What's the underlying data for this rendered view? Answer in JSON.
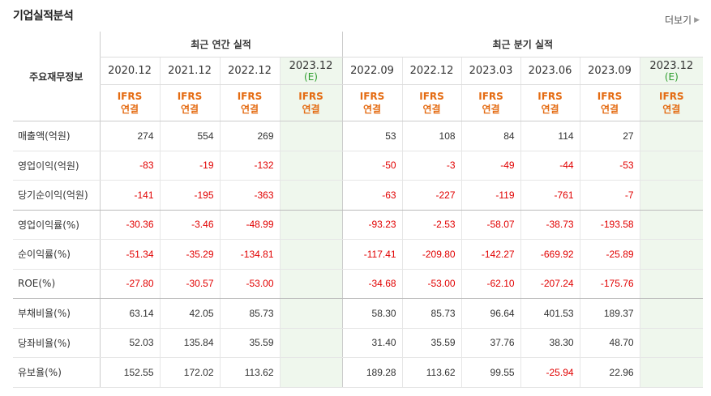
{
  "section_title": "기업실적분석",
  "more_label": "더보기",
  "table": {
    "label_header": "주요재무정보",
    "annual_group": "최근 연간 실적",
    "quarter_group": "최근 분기 실적",
    "annual_periods": [
      "2020.12",
      "2021.12",
      "2022.12",
      "2023.12"
    ],
    "annual_estimate_marks": [
      "",
      "",
      "",
      "(E)"
    ],
    "quarter_periods": [
      "2022.09",
      "2022.12",
      "2023.03",
      "2023.06",
      "2023.09",
      "2023.12"
    ],
    "quarter_estimate_marks": [
      "",
      "",
      "",
      "",
      "",
      "(E)"
    ],
    "ifrs_top": "IFRS",
    "ifrs_bottom": "연결",
    "rows": [
      {
        "label": "매출액(억원)",
        "annual": [
          "274",
          "554",
          "269",
          ""
        ],
        "quarter": [
          "53",
          "108",
          "84",
          "114",
          "27",
          ""
        ]
      },
      {
        "label": "영업이익(억원)",
        "annual": [
          "-83",
          "-19",
          "-132",
          ""
        ],
        "quarter": [
          "-50",
          "-3",
          "-49",
          "-44",
          "-53",
          ""
        ]
      },
      {
        "label": "당기순이익(억원)",
        "annual": [
          "-141",
          "-195",
          "-363",
          ""
        ],
        "quarter": [
          "-63",
          "-227",
          "-119",
          "-761",
          "-7",
          ""
        ]
      },
      {
        "label": "영업이익률(%)",
        "annual": [
          "-30.36",
          "-3.46",
          "-48.99",
          ""
        ],
        "quarter": [
          "-93.23",
          "-2.53",
          "-58.07",
          "-38.73",
          "-193.58",
          ""
        ]
      },
      {
        "label": "순이익률(%)",
        "annual": [
          "-51.34",
          "-35.29",
          "-134.81",
          ""
        ],
        "quarter": [
          "-117.41",
          "-209.80",
          "-142.27",
          "-669.92",
          "-25.89",
          ""
        ]
      },
      {
        "label": "ROE(%)",
        "annual": [
          "-27.80",
          "-30.57",
          "-53.00",
          ""
        ],
        "quarter": [
          "-34.68",
          "-53.00",
          "-62.10",
          "-207.24",
          "-175.76",
          ""
        ]
      },
      {
        "label": "부채비율(%)",
        "annual": [
          "63.14",
          "42.05",
          "85.73",
          ""
        ],
        "quarter": [
          "58.30",
          "85.73",
          "96.64",
          "401.53",
          "189.37",
          ""
        ]
      },
      {
        "label": "당좌비율(%)",
        "annual": [
          "52.03",
          "135.84",
          "35.59",
          ""
        ],
        "quarter": [
          "31.40",
          "35.59",
          "37.76",
          "38.30",
          "48.70",
          ""
        ]
      },
      {
        "label": "유보율(%)",
        "annual": [
          "152.55",
          "172.02",
          "113.62",
          ""
        ],
        "quarter": [
          "189.28",
          "113.62",
          "99.55",
          "-25.94",
          "22.96",
          ""
        ]
      }
    ]
  },
  "colors": {
    "negative": "#e10000",
    "ifrs": "#e46b12",
    "estimate_bg": "#eff7ed"
  }
}
